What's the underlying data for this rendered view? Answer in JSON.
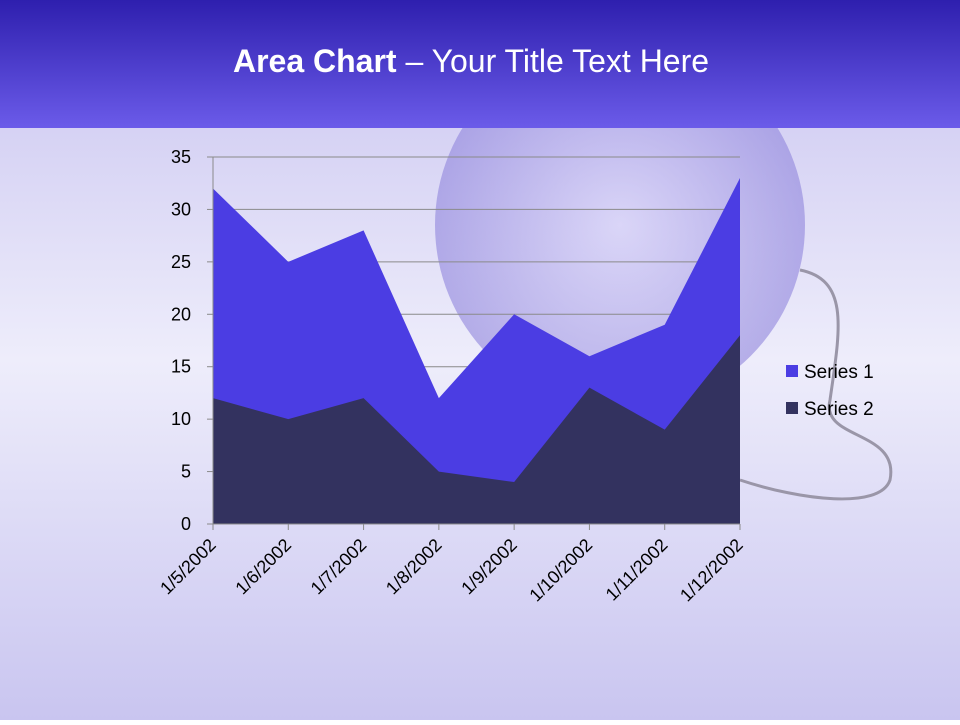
{
  "chart_data": {
    "type": "area",
    "title_bold": "Area Chart",
    "title_rest": "– Your Title Text Here",
    "categories": [
      "1/5/2002",
      "1/6/2002",
      "1/7/2002",
      "1/8/2002",
      "1/9/2002",
      "1/10/2002",
      "1/11/2002",
      "1/12/2002"
    ],
    "series": [
      {
        "name": "Series 1",
        "color": "#4b3de3",
        "values": [
          32,
          25,
          28,
          12,
          20,
          16,
          19,
          33
        ]
      },
      {
        "name": "Series 2",
        "color": "#33325f",
        "values": [
          12,
          10,
          12,
          5,
          4,
          13,
          9,
          18
        ]
      }
    ],
    "ylim": [
      0,
      35
    ],
    "yticks": [
      0,
      5,
      10,
      15,
      20,
      25,
      30,
      35
    ],
    "grid": true,
    "legend": "right"
  }
}
